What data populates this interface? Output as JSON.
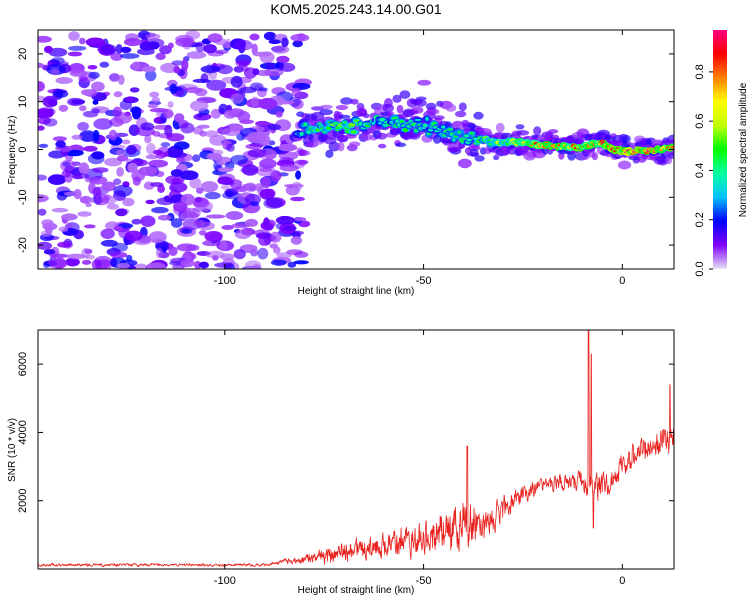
{
  "title": "KOM5.2025.243.14.00.G01",
  "colors": {
    "snr_line": "#e8231f",
    "axis": "#000000",
    "background": "#ffffff"
  },
  "chart_data": [
    {
      "type": "heatmap",
      "name": "spectrogram",
      "xlabel": "Height of straight line (km)",
      "ylabel": "Frequency (Hz)",
      "xlim": [
        -147,
        13
      ],
      "ylim": [
        -25,
        25
      ],
      "xticks": [
        -100,
        -50,
        0
      ],
      "yticks": [
        -20,
        -10,
        0,
        10,
        20
      ],
      "xtick_labels": [
        "-100",
        "-50",
        "0"
      ],
      "ytick_labels": [
        "-20",
        "-10",
        "0",
        "10",
        "20"
      ],
      "colorbar": {
        "label": "Normalized spectral amplitude",
        "range": [
          0,
          0.97
        ],
        "ticks": [
          0.0,
          0.2,
          0.4,
          0.6,
          0.8
        ],
        "tick_labels": [
          "0.0",
          "0.2",
          "0.4",
          "0.6",
          "0.8"
        ],
        "colormap": [
          "#e8e0f4",
          "#8000ff",
          "#0000ff",
          "#00c0ff",
          "#00ffa0",
          "#00ff00",
          "#c0ff00",
          "#ffff00",
          "#ff8000",
          "#ff0000",
          "#ff0080"
        ]
      },
      "noise_region": {
        "x": [
          -147,
          -80
        ],
        "y": [
          -25,
          24
        ],
        "amplitude": [
          0.05,
          0.2
        ]
      },
      "signal_ridge": [
        {
          "x": -82,
          "f": 4.0,
          "a": 0.35
        },
        {
          "x": -75,
          "f": 4.5,
          "a": 0.5
        },
        {
          "x": -68,
          "f": 5.0,
          "a": 0.5
        },
        {
          "x": -62,
          "f": 5.8,
          "a": 0.4
        },
        {
          "x": -56,
          "f": 6.0,
          "a": 0.45
        },
        {
          "x": -50,
          "f": 5.0,
          "a": 0.42
        },
        {
          "x": -45,
          "f": 4.0,
          "a": 0.45
        },
        {
          "x": -40,
          "f": 3.0,
          "a": 0.45
        },
        {
          "x": -35,
          "f": 2.0,
          "a": 0.5
        },
        {
          "x": -30,
          "f": 1.5,
          "a": 0.6
        },
        {
          "x": -25,
          "f": 1.5,
          "a": 0.75
        },
        {
          "x": -20,
          "f": 1.0,
          "a": 0.8
        },
        {
          "x": -15,
          "f": 0.5,
          "a": 0.8
        },
        {
          "x": -10,
          "f": 0.5,
          "a": 0.82
        },
        {
          "x": -6,
          "f": 1.5,
          "a": 0.85
        },
        {
          "x": -2,
          "f": 0.0,
          "a": 0.9
        },
        {
          "x": 4,
          "f": -0.5,
          "a": 0.9
        },
        {
          "x": 10,
          "f": 0.0,
          "a": 0.88
        },
        {
          "x": 13,
          "f": 0.5,
          "a": 0.85
        }
      ]
    },
    {
      "type": "line",
      "name": "snr",
      "xlabel": "Height of straight line (km)",
      "ylabel": "SNR (10 * v/v)",
      "xlim": [
        -147,
        13
      ],
      "ylim": [
        0,
        7000
      ],
      "xticks": [
        -100,
        -50,
        0
      ],
      "yticks": [
        2000,
        4000,
        6000
      ],
      "xtick_labels": [
        "-100",
        "-50",
        "0"
      ],
      "ytick_labels": [
        "2000",
        "4000",
        "6000"
      ],
      "series": [
        {
          "name": "SNR",
          "color": "#e8231f",
          "envelope": [
            {
              "x": -147,
              "mean": 120,
              "amp": 80
            },
            {
              "x": -90,
              "mean": 120,
              "amp": 80
            },
            {
              "x": -82,
              "mean": 250,
              "amp": 200
            },
            {
              "x": -70,
              "mean": 500,
              "amp": 550
            },
            {
              "x": -60,
              "mean": 700,
              "amp": 700
            },
            {
              "x": -50,
              "mean": 900,
              "amp": 900
            },
            {
              "x": -40,
              "mean": 1300,
              "amp": 1300
            },
            {
              "x": -35,
              "mean": 1300,
              "amp": 1000
            },
            {
              "x": -30,
              "mean": 1700,
              "amp": 700
            },
            {
              "x": -25,
              "mean": 2200,
              "amp": 500
            },
            {
              "x": -18,
              "mean": 2500,
              "amp": 400
            },
            {
              "x": -12,
              "mean": 2600,
              "amp": 450
            },
            {
              "x": -6,
              "mean": 2400,
              "amp": 900
            },
            {
              "x": -2,
              "mean": 2700,
              "amp": 700
            },
            {
              "x": 5,
              "mean": 3500,
              "amp": 800
            },
            {
              "x": 13,
              "mean": 3900,
              "amp": 900
            }
          ],
          "spikes": [
            {
              "x": -8.5,
              "y": 7000
            },
            {
              "x": -7.8,
              "y": 6300
            },
            {
              "x": -7.3,
              "y": 1200
            },
            {
              "x": -39,
              "y": 3600
            },
            {
              "x": 12,
              "y": 5400
            }
          ]
        }
      ]
    }
  ]
}
